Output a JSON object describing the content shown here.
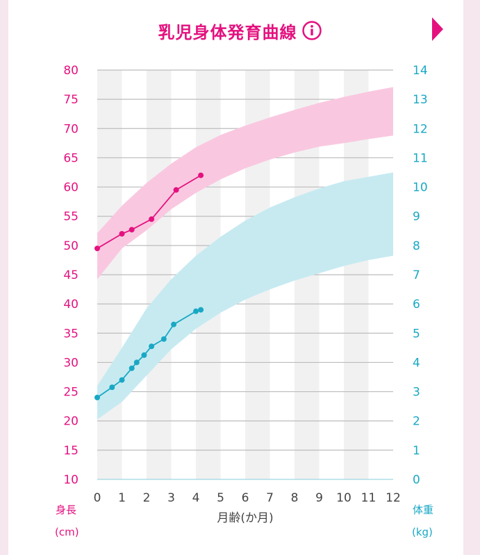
{
  "title": "乳児身体発育曲線",
  "icons": {
    "info": "info-icon",
    "next": "next-arrow-icon"
  },
  "colors": {
    "accent": "#e4117f",
    "length_line": "#e4117f",
    "length_band": "#f9c8e0",
    "weight_line": "#19a8c4",
    "weight_band": "#c7eaf1"
  },
  "chart_data": {
    "type": "line",
    "xlabel": "月齢(か月)",
    "xlim": [
      0,
      12
    ],
    "x_ticks": [
      0,
      1,
      2,
      3,
      4,
      5,
      6,
      7,
      8,
      9,
      10,
      11,
      12
    ],
    "y_left": {
      "label": "身長",
      "unit": "(cm)",
      "lim": [
        10,
        80
      ],
      "ticks": [
        10,
        15,
        20,
        25,
        30,
        35,
        40,
        45,
        50,
        55,
        60,
        65,
        70,
        75,
        80
      ]
    },
    "y_right": {
      "label": "体重",
      "unit": "(kg)",
      "lim": [
        0,
        14
      ],
      "ticks": [
        0,
        1,
        2,
        3,
        4,
        5,
        6,
        7,
        8,
        9,
        10,
        11,
        12,
        13,
        14
      ]
    },
    "grid": true,
    "bands": [
      {
        "axis": "left",
        "x": [
          0,
          1,
          2,
          3,
          4,
          5,
          6,
          7,
          8,
          9,
          10,
          11,
          12
        ],
        "low": [
          44.2,
          49.5,
          52.6,
          56.2,
          59.0,
          61.3,
          63.2,
          64.7,
          65.9,
          66.9,
          67.5,
          68.2,
          68.8
        ],
        "high": [
          52.1,
          56.8,
          60.7,
          64.0,
          66.8,
          68.9,
          70.5,
          71.9,
          73.2,
          74.4,
          75.4,
          76.3,
          77.1
        ]
      },
      {
        "axis": "right",
        "x": [
          0,
          1,
          2,
          3,
          4,
          5,
          6,
          7,
          8,
          9,
          10,
          11,
          12
        ],
        "low": [
          2.05,
          2.65,
          3.55,
          4.45,
          5.15,
          5.7,
          6.15,
          6.5,
          6.8,
          7.05,
          7.3,
          7.5,
          7.65
        ],
        "high": [
          3.2,
          4.5,
          5.85,
          6.85,
          7.65,
          8.3,
          8.85,
          9.3,
          9.65,
          9.95,
          10.2,
          10.35,
          10.5
        ]
      }
    ],
    "series": [
      {
        "axis": "left",
        "x": [
          0,
          1.0,
          1.4,
          2.2,
          3.2,
          4.2
        ],
        "y": [
          49.5,
          52.0,
          52.7,
          54.5,
          59.5,
          62.0
        ]
      },
      {
        "axis": "right",
        "x": [
          0,
          0.6,
          1.0,
          1.4,
          1.6,
          1.9,
          2.2,
          2.7,
          3.1,
          4.0,
          4.2
        ],
        "y": [
          2.8,
          3.15,
          3.4,
          3.8,
          4.0,
          4.25,
          4.55,
          4.8,
          5.3,
          5.75,
          5.8
        ]
      }
    ]
  }
}
